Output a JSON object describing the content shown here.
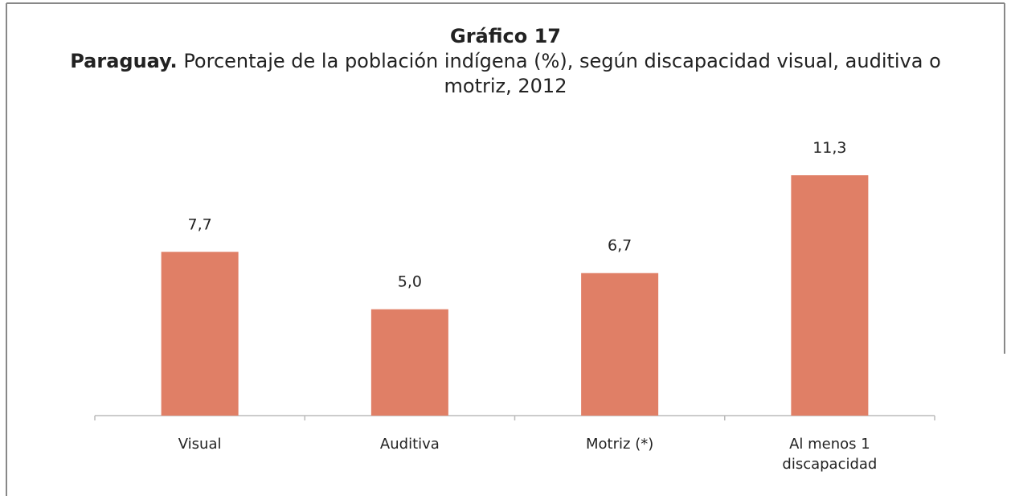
{
  "chart_data": {
    "type": "bar",
    "title": "Gráfico 17",
    "subtitle_lead": "Paraguay.",
    "subtitle": "Porcentaje de la población indígena (%), según discapacidad visual, auditiva o motriz, 2012",
    "categories": [
      "Visual",
      "Auditiva",
      "Motriz (*)",
      "Al menos 1 discapacidad"
    ],
    "values": [
      7.7,
      5.0,
      6.7,
      11.3
    ],
    "value_labels": [
      "7,7",
      "5,0",
      "6,7",
      "11,3"
    ],
    "color": "#e07f66",
    "ylim": [
      0,
      12
    ],
    "grid": false
  }
}
